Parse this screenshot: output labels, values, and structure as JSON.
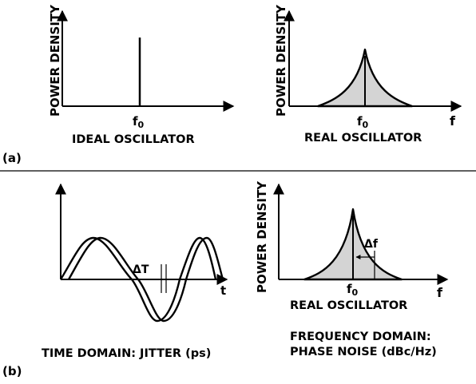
{
  "panel_a": {
    "tag": "(a)",
    "left": {
      "y_label": "POWER DENSITY",
      "center_label": "f",
      "center_sub": "0",
      "caption": "IDEAL OSCILLATOR"
    },
    "right": {
      "y_label": "POWER DENSITY",
      "center_label": "f",
      "center_sub": "0",
      "x_label": "f",
      "caption": "REAL OSCILLATOR"
    }
  },
  "panel_b": {
    "tag": "(b)",
    "left": {
      "x_label": "t",
      "delta_label": "ΔT",
      "caption": "TIME DOMAIN: JITTER (ps)"
    },
    "right": {
      "y_label": "POWER DENSITY",
      "center_label": "f",
      "center_sub": "0",
      "x_label": "f",
      "delta_label": "Δf",
      "caption": "REAL OSCILLATOR",
      "caption2_line1": "FREQUENCY DOMAIN:",
      "caption2_line2": "PHASE NOISE (dBc/Hz)"
    }
  }
}
